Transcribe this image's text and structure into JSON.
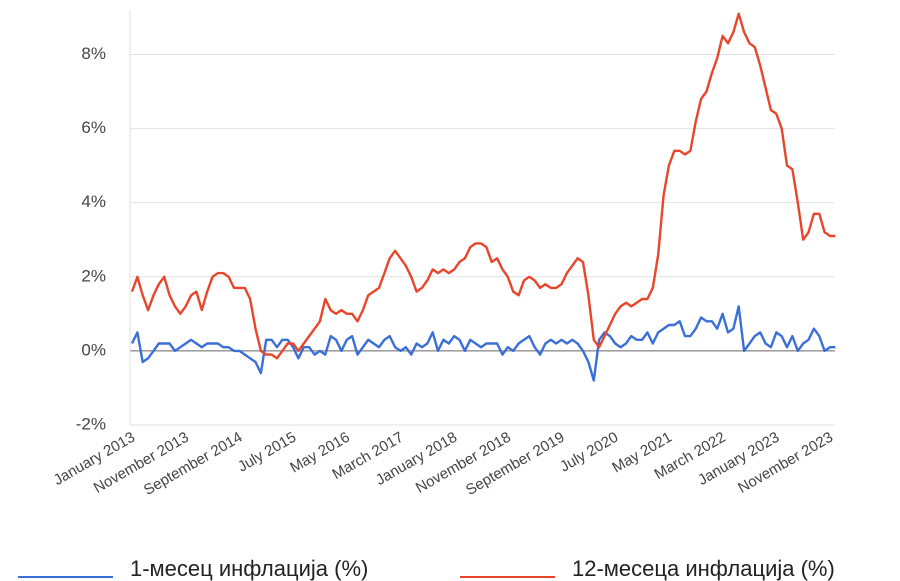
{
  "chart_data": {
    "type": "line",
    "categories": [
      "January 2013",
      null,
      null,
      null,
      null,
      null,
      null,
      null,
      null,
      null,
      "November 2013",
      null,
      null,
      null,
      null,
      null,
      null,
      null,
      null,
      null,
      "September 2014",
      null,
      null,
      null,
      null,
      null,
      null,
      null,
      null,
      null,
      "July 2015",
      null,
      null,
      null,
      null,
      null,
      null,
      null,
      null,
      null,
      "May 2016",
      null,
      null,
      null,
      null,
      null,
      null,
      null,
      null,
      null,
      "March 2017",
      null,
      null,
      null,
      null,
      null,
      null,
      null,
      null,
      null,
      "January 2018",
      null,
      null,
      null,
      null,
      null,
      null,
      null,
      null,
      null,
      "November 2018",
      null,
      null,
      null,
      null,
      null,
      null,
      null,
      null,
      null,
      "September 2019",
      null,
      null,
      null,
      null,
      null,
      null,
      null,
      null,
      null,
      "July 2020",
      null,
      null,
      null,
      null,
      null,
      null,
      null,
      null,
      null,
      "May 2021",
      null,
      null,
      null,
      null,
      null,
      null,
      null,
      null,
      null,
      "March 2022",
      null,
      null,
      null,
      null,
      null,
      null,
      null,
      null,
      null,
      "January 2023",
      null,
      null,
      null,
      null,
      null,
      null,
      null,
      null,
      null,
      "November 2023",
      null
    ],
    "series": [
      {
        "name": "1-месец инфлација (%)",
        "color": "#3b6fd8",
        "values": [
          0.2,
          0.5,
          -0.3,
          -0.2,
          0.0,
          0.2,
          0.2,
          0.2,
          0.0,
          0.1,
          0.2,
          0.3,
          0.2,
          0.1,
          0.2,
          0.2,
          0.2,
          0.1,
          0.1,
          0.0,
          0.0,
          -0.1,
          -0.2,
          -0.3,
          -0.6,
          0.3,
          0.3,
          0.1,
          0.3,
          0.3,
          0.1,
          -0.2,
          0.1,
          0.1,
          -0.1,
          0.0,
          -0.1,
          0.4,
          0.3,
          0.0,
          0.3,
          0.4,
          -0.1,
          0.1,
          0.3,
          0.2,
          0.1,
          0.3,
          0.4,
          0.1,
          0.0,
          0.1,
          -0.1,
          0.2,
          0.1,
          0.2,
          0.5,
          0.0,
          0.3,
          0.2,
          0.4,
          0.3,
          0.0,
          0.3,
          0.2,
          0.1,
          0.2,
          0.2,
          0.2,
          -0.1,
          0.1,
          0.0,
          0.2,
          0.3,
          0.4,
          0.1,
          -0.1,
          0.2,
          0.3,
          0.2,
          0.3,
          0.2,
          0.3,
          0.2,
          0.0,
          -0.3,
          -0.8,
          0.3,
          0.5,
          0.4,
          0.2,
          0.1,
          0.2,
          0.4,
          0.3,
          0.3,
          0.5,
          0.2,
          0.5,
          0.6,
          0.7,
          0.7,
          0.8,
          0.4,
          0.4,
          0.6,
          0.9,
          0.8,
          0.8,
          0.6,
          1.0,
          0.5,
          0.6,
          1.2,
          0.0,
          0.2,
          0.4,
          0.5,
          0.2,
          0.1,
          0.5,
          0.4,
          0.1,
          0.4,
          0.0,
          0.2,
          0.3,
          0.6,
          0.4,
          0.0,
          0.1,
          0.1
        ]
      },
      {
        "name": "12-месеца инфлација (%)",
        "color": "#e8462a",
        "values": [
          1.6,
          2.0,
          1.5,
          1.1,
          1.5,
          1.8,
          2.0,
          1.5,
          1.2,
          1.0,
          1.2,
          1.5,
          1.6,
          1.1,
          1.6,
          2.0,
          2.1,
          2.1,
          2.0,
          1.7,
          1.7,
          1.7,
          1.4,
          0.6,
          0.0,
          -0.1,
          -0.1,
          -0.2,
          0.0,
          0.2,
          0.2,
          0.0,
          0.2,
          0.4,
          0.6,
          0.8,
          1.4,
          1.1,
          1.0,
          1.1,
          1.0,
          1.0,
          0.8,
          1.1,
          1.5,
          1.6,
          1.7,
          2.1,
          2.5,
          2.7,
          2.5,
          2.3,
          2.0,
          1.6,
          1.7,
          1.9,
          2.2,
          2.1,
          2.2,
          2.1,
          2.2,
          2.4,
          2.5,
          2.8,
          2.9,
          2.9,
          2.8,
          2.4,
          2.5,
          2.2,
          2.0,
          1.6,
          1.5,
          1.9,
          2.0,
          1.9,
          1.7,
          1.8,
          1.7,
          1.7,
          1.8,
          2.1,
          2.3,
          2.5,
          2.4,
          1.5,
          0.3,
          0.1,
          0.4,
          0.7,
          1.0,
          1.2,
          1.3,
          1.2,
          1.3,
          1.4,
          1.4,
          1.7,
          2.6,
          4.2,
          5.0,
          5.4,
          5.4,
          5.3,
          5.4,
          6.2,
          6.8,
          7.0,
          7.5,
          7.9,
          8.5,
          8.3,
          8.6,
          9.1,
          8.6,
          8.3,
          8.2,
          7.7,
          7.1,
          6.5,
          6.4,
          6.0,
          5.0,
          4.9,
          4.0,
          3.0,
          3.2,
          3.7,
          3.7,
          3.2,
          3.1,
          3.1
        ]
      }
    ],
    "ylim": [
      -2,
      9.2
    ],
    "yticks": [
      {
        "value": -2,
        "label": "-2%"
      },
      {
        "value": 0,
        "label": "0%"
      },
      {
        "value": 2,
        "label": "2%"
      },
      {
        "value": 4,
        "label": "4%"
      },
      {
        "value": 6,
        "label": "6%"
      },
      {
        "value": 8,
        "label": "8%"
      }
    ],
    "grid": true,
    "legend": "bottom"
  }
}
